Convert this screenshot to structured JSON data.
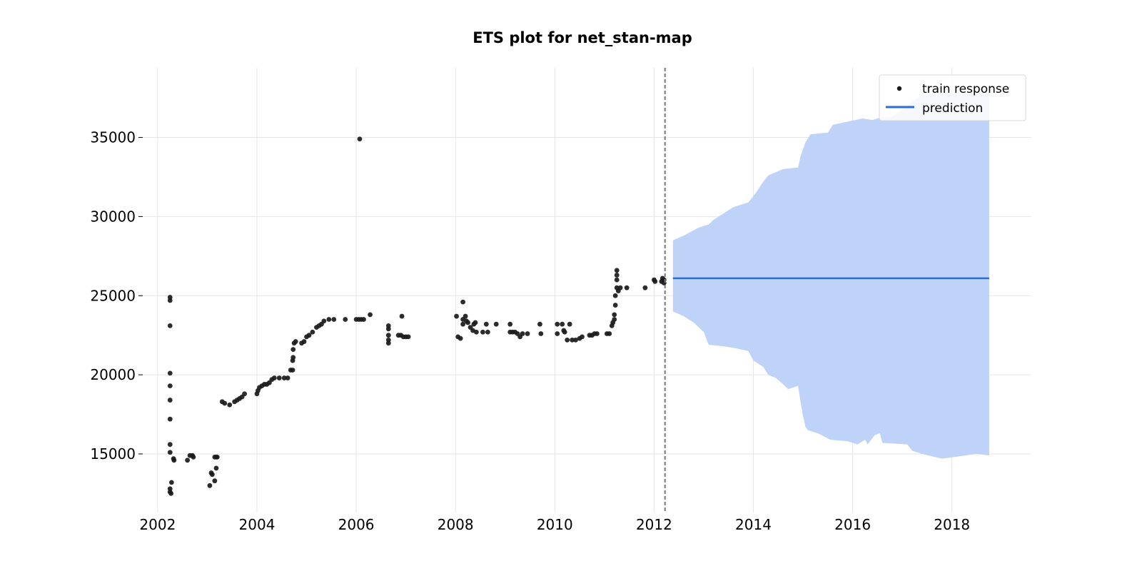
{
  "chart_data": {
    "type": "scatter",
    "title": "ETS plot for net_stan-map",
    "xlabel": "",
    "ylabel": "",
    "xlim": [
      2001.7,
      2019.6
    ],
    "ylim": [
      11300,
      39400
    ],
    "x_ticks": [
      2002,
      2004,
      2006,
      2008,
      2010,
      2012,
      2014,
      2016,
      2018
    ],
    "y_ticks": [
      15000,
      20000,
      25000,
      30000,
      35000
    ],
    "grid": true,
    "legend": {
      "position": "top-right",
      "entries": [
        "train response",
        "prediction"
      ]
    },
    "colors": {
      "train_response": "#1a1a1a",
      "prediction_line": "#2b6fd6",
      "prediction_band": "#bfd2f8",
      "cutoff_line": "#777777"
    },
    "train_cutoff_x": 2012.22,
    "series": [
      {
        "name": "train response",
        "type": "scatter",
        "points": [
          [
            2002.25,
            24900
          ],
          [
            2002.25,
            24700
          ],
          [
            2002.25,
            23100
          ],
          [
            2002.25,
            20100
          ],
          [
            2002.25,
            19300
          ],
          [
            2002.25,
            18400
          ],
          [
            2002.25,
            17200
          ],
          [
            2002.25,
            15600
          ],
          [
            2002.25,
            15100
          ],
          [
            2002.25,
            12800
          ],
          [
            2002.25,
            12600
          ],
          [
            2002.27,
            12500
          ],
          [
            2002.28,
            13200
          ],
          [
            2002.32,
            14700
          ],
          [
            2002.33,
            14600
          ],
          [
            2002.6,
            14600
          ],
          [
            2002.65,
            14900
          ],
          [
            2002.7,
            14900
          ],
          [
            2002.72,
            14800
          ],
          [
            2003.05,
            13000
          ],
          [
            2003.08,
            13800
          ],
          [
            2003.1,
            13700
          ],
          [
            2003.15,
            14800
          ],
          [
            2003.18,
            14800
          ],
          [
            2003.2,
            14800
          ],
          [
            2003.18,
            14100
          ],
          [
            2003.15,
            13300
          ],
          [
            2003.3,
            18300
          ],
          [
            2003.35,
            18200
          ],
          [
            2003.45,
            18100
          ],
          [
            2003.55,
            18300
          ],
          [
            2003.6,
            18400
          ],
          [
            2003.65,
            18500
          ],
          [
            2003.7,
            18600
          ],
          [
            2003.75,
            18800
          ],
          [
            2004.0,
            18800
          ],
          [
            2004.02,
            19000
          ],
          [
            2004.05,
            19200
          ],
          [
            2004.1,
            19300
          ],
          [
            2004.15,
            19400
          ],
          [
            2004.2,
            19400
          ],
          [
            2004.25,
            19500
          ],
          [
            2004.3,
            19700
          ],
          [
            2004.35,
            19800
          ],
          [
            2004.45,
            19800
          ],
          [
            2004.55,
            19800
          ],
          [
            2004.62,
            19800
          ],
          [
            2004.68,
            20300
          ],
          [
            2004.72,
            20300
          ],
          [
            2004.72,
            20900
          ],
          [
            2004.73,
            21100
          ],
          [
            2004.73,
            21600
          ],
          [
            2004.75,
            22000
          ],
          [
            2004.78,
            22100
          ],
          [
            2004.9,
            22000
          ],
          [
            2004.95,
            22100
          ],
          [
            2005.0,
            22400
          ],
          [
            2005.05,
            22500
          ],
          [
            2005.12,
            22700
          ],
          [
            2005.2,
            23000
          ],
          [
            2005.25,
            23100
          ],
          [
            2005.3,
            23200
          ],
          [
            2005.35,
            23400
          ],
          [
            2005.45,
            23500
          ],
          [
            2005.55,
            23500
          ],
          [
            2005.78,
            23500
          ],
          [
            2006.0,
            23500
          ],
          [
            2006.05,
            23500
          ],
          [
            2006.1,
            23500
          ],
          [
            2006.15,
            23500
          ],
          [
            2006.28,
            23800
          ],
          [
            2006.07,
            34900
          ],
          [
            2006.65,
            23100
          ],
          [
            2006.65,
            22900
          ],
          [
            2006.65,
            22500
          ],
          [
            2006.65,
            22200
          ],
          [
            2006.65,
            22000
          ],
          [
            2006.85,
            22500
          ],
          [
            2006.9,
            22500
          ],
          [
            2006.92,
            23700
          ],
          [
            2006.95,
            22400
          ],
          [
            2007.0,
            22400
          ],
          [
            2007.05,
            22400
          ],
          [
            2008.02,
            23700
          ],
          [
            2008.05,
            22400
          ],
          [
            2008.1,
            22300
          ],
          [
            2008.15,
            24600
          ],
          [
            2008.15,
            23500
          ],
          [
            2008.15,
            23200
          ],
          [
            2008.2,
            23700
          ],
          [
            2008.22,
            23400
          ],
          [
            2008.25,
            23300
          ],
          [
            2008.3,
            23000
          ],
          [
            2008.35,
            22800
          ],
          [
            2008.37,
            23200
          ],
          [
            2008.4,
            23300
          ],
          [
            2008.42,
            22700
          ],
          [
            2008.55,
            22700
          ],
          [
            2008.62,
            23200
          ],
          [
            2008.65,
            22700
          ],
          [
            2008.82,
            23200
          ],
          [
            2009.1,
            23200
          ],
          [
            2009.1,
            22700
          ],
          [
            2009.15,
            22700
          ],
          [
            2009.2,
            22700
          ],
          [
            2009.25,
            22600
          ],
          [
            2009.3,
            22400
          ],
          [
            2009.35,
            22600
          ],
          [
            2009.45,
            22600
          ],
          [
            2009.7,
            23200
          ],
          [
            2009.72,
            22600
          ],
          [
            2010.05,
            23200
          ],
          [
            2010.05,
            22600
          ],
          [
            2010.15,
            23200
          ],
          [
            2010.18,
            22800
          ],
          [
            2010.2,
            22700
          ],
          [
            2010.25,
            22200
          ],
          [
            2010.3,
            23200
          ],
          [
            2010.35,
            22200
          ],
          [
            2010.42,
            22200
          ],
          [
            2010.5,
            22300
          ],
          [
            2010.55,
            22400
          ],
          [
            2010.7,
            22500
          ],
          [
            2010.75,
            22500
          ],
          [
            2010.8,
            22600
          ],
          [
            2010.85,
            22600
          ],
          [
            2011.05,
            22600
          ],
          [
            2011.1,
            22600
          ],
          [
            2011.15,
            23100
          ],
          [
            2011.17,
            23300
          ],
          [
            2011.2,
            23500
          ],
          [
            2011.2,
            23800
          ],
          [
            2011.22,
            24400
          ],
          [
            2011.22,
            25000
          ],
          [
            2011.25,
            25500
          ],
          [
            2011.25,
            26000
          ],
          [
            2011.25,
            26300
          ],
          [
            2011.25,
            26600
          ],
          [
            2011.28,
            25300
          ],
          [
            2011.32,
            25500
          ],
          [
            2011.45,
            25500
          ],
          [
            2011.82,
            25500
          ],
          [
            2012.0,
            26000
          ],
          [
            2012.02,
            25900
          ],
          [
            2012.15,
            25900
          ],
          [
            2012.17,
            26100
          ],
          [
            2012.2,
            26000
          ],
          [
            2012.2,
            25800
          ]
        ]
      },
      {
        "name": "prediction",
        "type": "line",
        "x": [
          2012.38,
          2018.75
        ],
        "values": [
          26100,
          26100
        ]
      },
      {
        "name": "",
        "type": "area",
        "x_start": 2012.38,
        "x_end": 2018.75,
        "upper": [
          [
            2012.38,
            28500
          ],
          [
            2012.6,
            28800
          ],
          [
            2012.9,
            29300
          ],
          [
            2013.1,
            29500
          ],
          [
            2013.2,
            29800
          ],
          [
            2013.4,
            30200
          ],
          [
            2013.6,
            30600
          ],
          [
            2013.9,
            30900
          ],
          [
            2014.05,
            31500
          ],
          [
            2014.2,
            32200
          ],
          [
            2014.3,
            32600
          ],
          [
            2014.45,
            32800
          ],
          [
            2014.6,
            33000
          ],
          [
            2014.9,
            33100
          ],
          [
            2014.95,
            33800
          ],
          [
            2015.05,
            34700
          ],
          [
            2015.15,
            35200
          ],
          [
            2015.5,
            35300
          ],
          [
            2015.6,
            35800
          ],
          [
            2015.9,
            36000
          ],
          [
            2016.2,
            36200
          ],
          [
            2016.4,
            36100
          ],
          [
            2016.6,
            36300
          ],
          [
            2016.8,
            36300
          ],
          [
            2017.1,
            37000
          ],
          [
            2017.3,
            37500
          ],
          [
            2017.6,
            37800
          ],
          [
            2018.75,
            37800
          ]
        ],
        "lower": [
          [
            2012.38,
            24000
          ],
          [
            2012.6,
            23700
          ],
          [
            2012.8,
            23300
          ],
          [
            2013.0,
            22700
          ],
          [
            2013.1,
            21900
          ],
          [
            2013.4,
            21800
          ],
          [
            2013.6,
            21700
          ],
          [
            2013.9,
            21500
          ],
          [
            2014.0,
            20900
          ],
          [
            2014.2,
            20500
          ],
          [
            2014.3,
            20000
          ],
          [
            2014.45,
            19800
          ],
          [
            2014.6,
            19400
          ],
          [
            2014.7,
            19100
          ],
          [
            2014.9,
            19300
          ],
          [
            2014.95,
            18300
          ],
          [
            2015.0,
            17400
          ],
          [
            2015.05,
            16700
          ],
          [
            2015.1,
            16500
          ],
          [
            2015.3,
            16300
          ],
          [
            2015.55,
            15900
          ],
          [
            2015.9,
            15800
          ],
          [
            2016.1,
            15600
          ],
          [
            2016.25,
            15900
          ],
          [
            2016.3,
            15600
          ],
          [
            2016.45,
            16200
          ],
          [
            2016.55,
            16300
          ],
          [
            2016.6,
            15700
          ],
          [
            2017.1,
            15600
          ],
          [
            2017.2,
            15200
          ],
          [
            2017.4,
            15000
          ],
          [
            2017.8,
            14700
          ],
          [
            2018.5,
            15000
          ],
          [
            2018.75,
            14900
          ]
        ]
      }
    ]
  }
}
